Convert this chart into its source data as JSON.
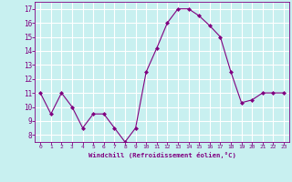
{
  "x": [
    0,
    1,
    2,
    3,
    4,
    5,
    6,
    7,
    8,
    9,
    10,
    11,
    12,
    13,
    14,
    15,
    16,
    17,
    18,
    19,
    20,
    21,
    22,
    23
  ],
  "y": [
    11,
    9.5,
    11,
    10,
    8.5,
    9.5,
    9.5,
    8.5,
    7.5,
    8.5,
    12.5,
    14.2,
    16,
    17,
    17,
    16.5,
    15.8,
    15,
    12.5,
    10.3,
    10.5,
    11,
    11,
    11
  ],
  "line_color": "#800080",
  "marker": "D",
  "marker_size": 2,
  "bg_color": "#c8f0f0",
  "grid_color": "#ffffff",
  "xlabel": "Windchill (Refroidissement éolien,°C)",
  "xlabel_color": "#800080",
  "tick_color": "#800080",
  "yticks": [
    8,
    9,
    10,
    11,
    12,
    13,
    14,
    15,
    16,
    17
  ],
  "xticks": [
    0,
    1,
    2,
    3,
    4,
    5,
    6,
    7,
    8,
    9,
    10,
    11,
    12,
    13,
    14,
    15,
    16,
    17,
    18,
    19,
    20,
    21,
    22,
    23
  ],
  "ylim": [
    7.5,
    17.5
  ],
  "xlim": [
    -0.5,
    23.5
  ]
}
